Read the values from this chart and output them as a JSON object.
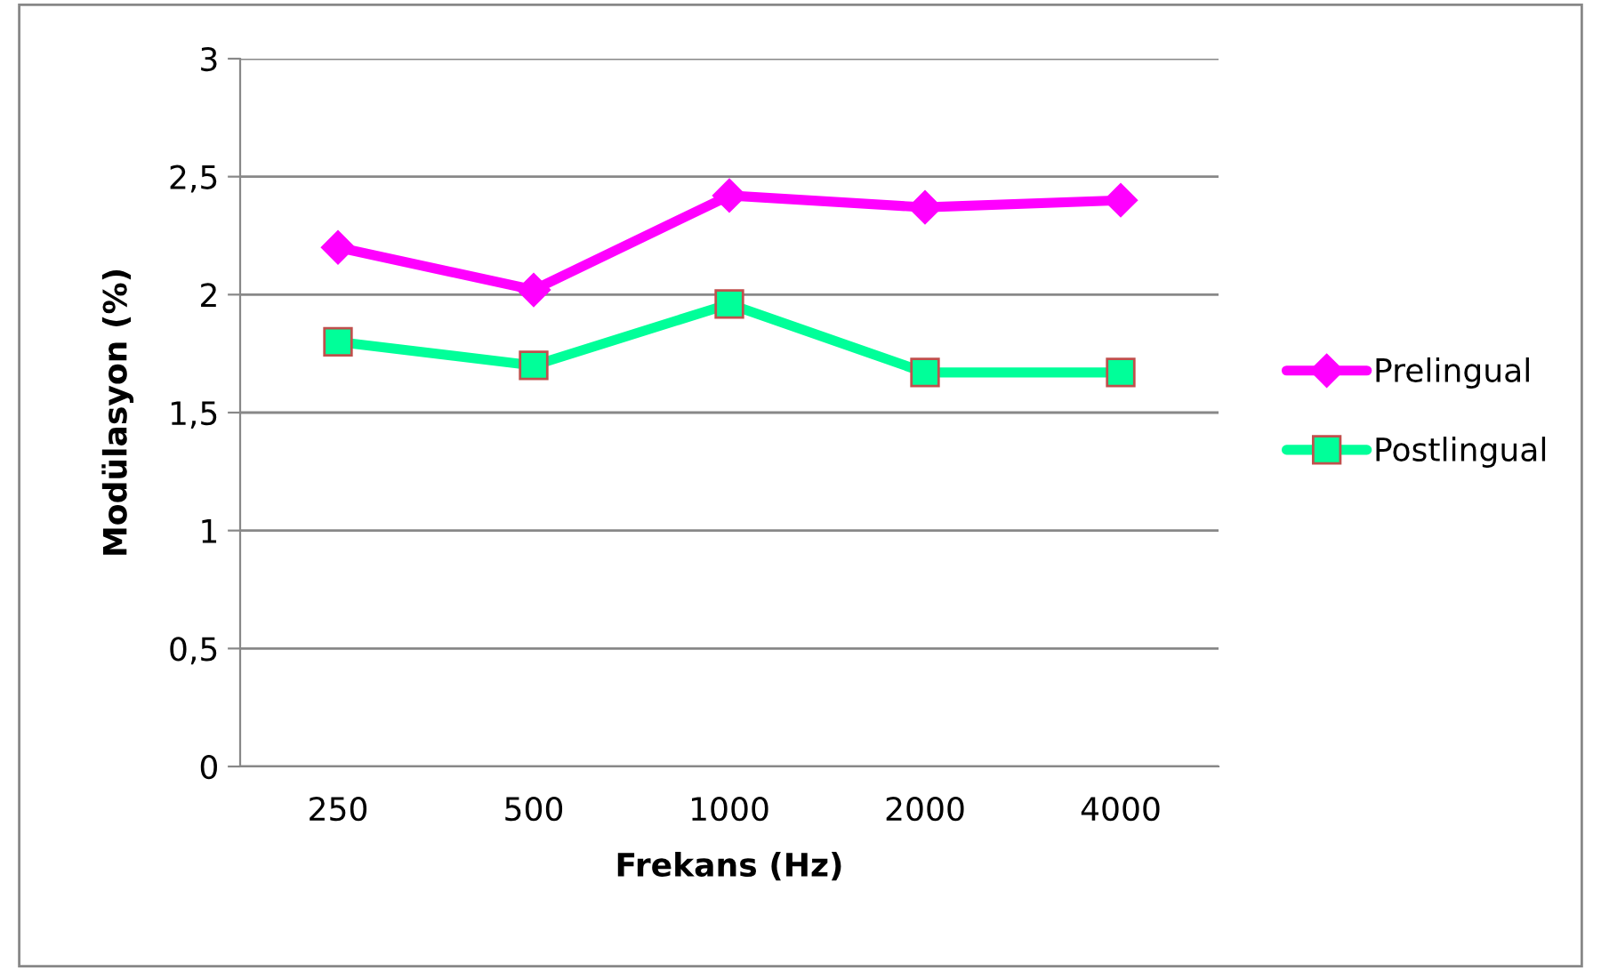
{
  "chart_data": {
    "type": "line",
    "xlabel": "Frekans (Hz)",
    "ylabel": "Modülasyon (%)",
    "categories": [
      "250",
      "500",
      "1000",
      "2000",
      "4000"
    ],
    "series": [
      {
        "name": "Prelingual",
        "color": "#ff00ff",
        "marker": "diamond",
        "values": [
          2.2,
          2.02,
          2.42,
          2.37,
          2.4
        ]
      },
      {
        "name": "Postlingual",
        "color": "#00ff99",
        "marker": "square",
        "values": [
          1.8,
          1.7,
          1.96,
          1.67,
          1.67
        ]
      }
    ],
    "ylim": [
      0,
      3
    ],
    "yticks": [
      0,
      {
        "value": 0.5,
        "label": "0,5"
      },
      1,
      {
        "value": 1.5,
        "label": "1,5"
      },
      2,
      {
        "value": 2.5,
        "label": "2,5"
      },
      3
    ],
    "grid": "y",
    "legend": "right"
  }
}
